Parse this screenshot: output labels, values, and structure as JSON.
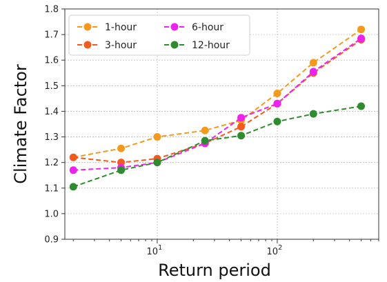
{
  "chart_data": {
    "type": "line",
    "xlabel": "Return period",
    "ylabel": "Climate Factor",
    "xscale": "log",
    "xlim": [
      1.7,
      700
    ],
    "ylim": [
      0.9,
      1.8
    ],
    "yticks": [
      "0.9",
      "1.0",
      "1.1",
      "1.2",
      "1.3",
      "1.4",
      "1.5",
      "1.6",
      "1.7",
      "1.8"
    ],
    "xticks": [
      {
        "value": 10,
        "base": "10",
        "exp": "1"
      },
      {
        "value": 100,
        "base": "10",
        "exp": "2"
      }
    ],
    "grid": true,
    "legend_position": "top-left",
    "x": [
      2,
      5,
      10,
      25,
      50,
      100,
      200,
      500
    ],
    "series": [
      {
        "name": "1-hour",
        "color": "#f39a1c",
        "values": [
          1.22,
          1.255,
          1.3,
          1.325,
          1.365,
          1.47,
          1.59,
          1.72
        ]
      },
      {
        "name": "3-hour",
        "color": "#f25a1e",
        "values": [
          1.22,
          1.2,
          1.215,
          1.275,
          1.34,
          1.43,
          1.55,
          1.68
        ]
      },
      {
        "name": "6-hour",
        "color": "#ee22ee",
        "values": [
          1.17,
          1.18,
          1.2,
          1.275,
          1.375,
          1.43,
          1.555,
          1.685
        ]
      },
      {
        "name": "12-hour",
        "color": "#2e8b2e",
        "values": [
          1.105,
          1.17,
          1.2,
          1.285,
          1.305,
          1.36,
          1.39,
          1.42
        ]
      }
    ]
  }
}
